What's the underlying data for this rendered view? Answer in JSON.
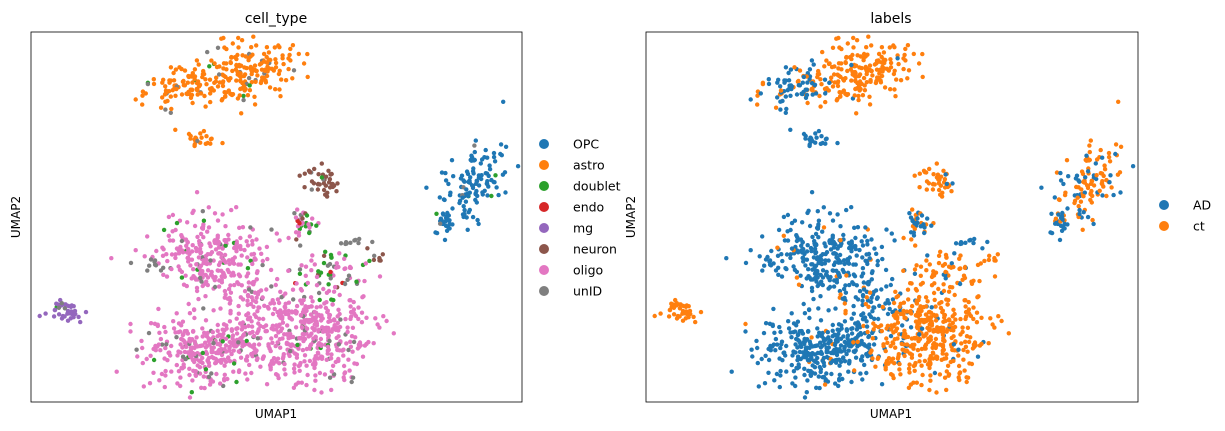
{
  "chart_data": [
    {
      "type": "scatter",
      "title": "cell_type",
      "xlabel": "UMAP1",
      "ylabel": "UMAP2",
      "xticks": [],
      "yticks": [],
      "legend_location": "right",
      "legend": [
        {
          "name": "OPC",
          "color": "#1f77b4"
        },
        {
          "name": "astro",
          "color": "#ff7f0e"
        },
        {
          "name": "doublet",
          "color": "#2ca02c"
        },
        {
          "name": "endo",
          "color": "#d62728"
        },
        {
          "name": "mg",
          "color": "#9467bd"
        },
        {
          "name": "neuron",
          "color": "#8c564b"
        },
        {
          "name": "oligo",
          "color": "#e377c2"
        },
        {
          "name": "unID",
          "color": "#7f7f7f"
        }
      ]
    },
    {
      "type": "scatter",
      "title": "labels",
      "xlabel": "UMAP1",
      "ylabel": "UMAP2",
      "xticks": [],
      "yticks": [],
      "legend_location": "right",
      "legend": [
        {
          "name": "AD",
          "color": "#1f77b4"
        },
        {
          "name": "ct",
          "color": "#ff7f0e"
        }
      ]
    }
  ]
}
